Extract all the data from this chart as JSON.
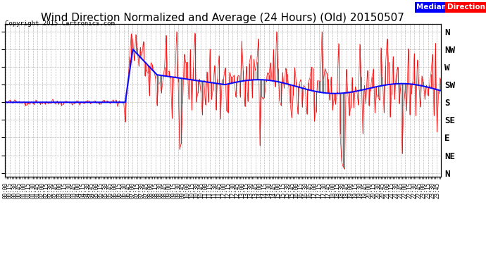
{
  "title": "Wind Direction Normalized and Average (24 Hours) (Old) 20150507",
  "copyright": "Copyright 2015 Cartronics.com",
  "legend_median": "Median",
  "legend_direction": "Direction",
  "y_labels_top_to_bottom": [
    "N",
    "NW",
    "W",
    "SW",
    "S",
    "SE",
    "E",
    "NE",
    "N"
  ],
  "y_ticks_values": [
    360,
    315,
    270,
    225,
    180,
    135,
    90,
    45,
    0
  ],
  "y_lim": [
    -10,
    380
  ],
  "background_color": "#ffffff",
  "grid_color": "#aaaaaa",
  "title_fontsize": 11,
  "median_color": "#0000ff",
  "direction_color": "#ff0000",
  "dark_bar_color": "#333333",
  "seed": 42
}
